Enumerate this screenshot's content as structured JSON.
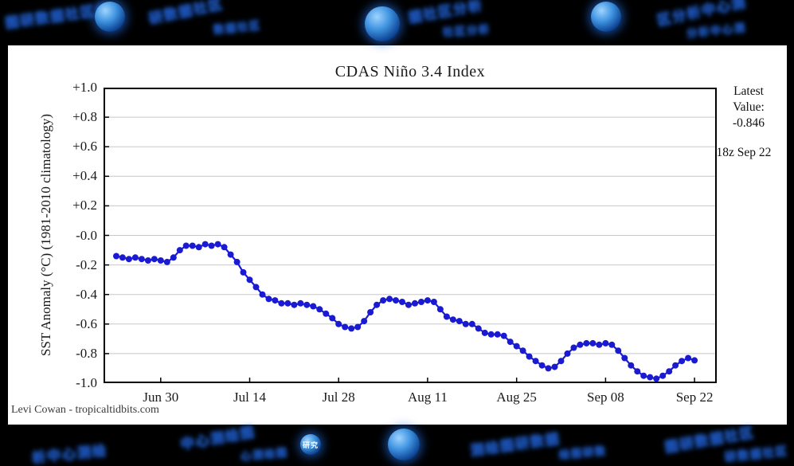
{
  "watermark": {
    "glyphs": "图研数据社区分析中心测绘",
    "badge": "研究"
  },
  "chart_data": {
    "type": "line",
    "title": "CDAS Niño 3.4 Index",
    "xlabel": "",
    "ylabel": "SST Anomaly (°C) (1981-2010 climatology)",
    "ylim": [
      -1.0,
      1.0
    ],
    "ytick_step": 0.2,
    "ytick_labels": [
      "+1.0",
      "+0.8",
      "+0.6",
      "+0.4",
      "+0.2",
      "-0.0",
      "-0.2",
      "-0.4",
      "-0.6",
      "-0.8",
      "-1.0"
    ],
    "xtick_labels": [
      "Jun 30",
      "Jul 14",
      "Jul 28",
      "Aug 11",
      "Aug 25",
      "Sep 08",
      "Sep 22"
    ],
    "xtick_indices": [
      7,
      21,
      35,
      49,
      63,
      77,
      91
    ],
    "grid": true,
    "legend_position": "none",
    "series_color": "#1a1ad2",
    "marker": "circle",
    "dates": [
      "Jun 23",
      "Jun 24",
      "Jun 25",
      "Jun 26",
      "Jun 27",
      "Jun 28",
      "Jun 29",
      "Jun 30",
      "Jul 01",
      "Jul 02",
      "Jul 03",
      "Jul 04",
      "Jul 05",
      "Jul 06",
      "Jul 07",
      "Jul 08",
      "Jul 09",
      "Jul 10",
      "Jul 11",
      "Jul 12",
      "Jul 13",
      "Jul 14",
      "Jul 15",
      "Jul 16",
      "Jul 17",
      "Jul 18",
      "Jul 19",
      "Jul 20",
      "Jul 21",
      "Jul 22",
      "Jul 23",
      "Jul 24",
      "Jul 25",
      "Jul 26",
      "Jul 27",
      "Jul 28",
      "Jul 29",
      "Jul 30",
      "Jul 31",
      "Aug 01",
      "Aug 02",
      "Aug 03",
      "Aug 04",
      "Aug 05",
      "Aug 06",
      "Aug 07",
      "Aug 08",
      "Aug 09",
      "Aug 10",
      "Aug 11",
      "Aug 12",
      "Aug 13",
      "Aug 14",
      "Aug 15",
      "Aug 16",
      "Aug 17",
      "Aug 18",
      "Aug 19",
      "Aug 20",
      "Aug 21",
      "Aug 22",
      "Aug 23",
      "Aug 24",
      "Aug 25",
      "Aug 26",
      "Aug 27",
      "Aug 28",
      "Aug 29",
      "Aug 30",
      "Aug 31",
      "Sep 01",
      "Sep 02",
      "Sep 03",
      "Sep 04",
      "Sep 05",
      "Sep 06",
      "Sep 07",
      "Sep 08",
      "Sep 09",
      "Sep 10",
      "Sep 11",
      "Sep 12",
      "Sep 13",
      "Sep 14",
      "Sep 15",
      "Sep 16",
      "Sep 17",
      "Sep 18",
      "Sep 19",
      "Sep 20",
      "Sep 21",
      "Sep 22"
    ],
    "values": [
      -0.14,
      -0.15,
      -0.16,
      -0.15,
      -0.16,
      -0.17,
      -0.16,
      -0.17,
      -0.18,
      -0.15,
      -0.1,
      -0.07,
      -0.07,
      -0.08,
      -0.06,
      -0.07,
      -0.06,
      -0.08,
      -0.13,
      -0.18,
      -0.25,
      -0.3,
      -0.35,
      -0.4,
      -0.43,
      -0.44,
      -0.46,
      -0.46,
      -0.47,
      -0.46,
      -0.47,
      -0.48,
      -0.5,
      -0.53,
      -0.56,
      -0.6,
      -0.62,
      -0.63,
      -0.62,
      -0.58,
      -0.52,
      -0.47,
      -0.44,
      -0.43,
      -0.44,
      -0.45,
      -0.47,
      -0.46,
      -0.45,
      -0.44,
      -0.45,
      -0.5,
      -0.55,
      -0.57,
      -0.58,
      -0.6,
      -0.6,
      -0.63,
      -0.66,
      -0.67,
      -0.67,
      -0.68,
      -0.72,
      -0.75,
      -0.78,
      -0.82,
      -0.85,
      -0.88,
      -0.9,
      -0.89,
      -0.85,
      -0.8,
      -0.76,
      -0.74,
      -0.73,
      -0.73,
      -0.74,
      -0.73,
      -0.74,
      -0.78,
      -0.83,
      -0.88,
      -0.92,
      -0.95,
      -0.96,
      -0.97,
      -0.95,
      -0.92,
      -0.88,
      -0.85,
      -0.83,
      -0.846
    ],
    "annotations": {
      "latest_label": "Latest",
      "value_label": "Value:",
      "latest_value": "-0.846",
      "timestamp": "18z Sep 22"
    },
    "credit": "Levi Cowan - tropicaltidbits.com"
  }
}
